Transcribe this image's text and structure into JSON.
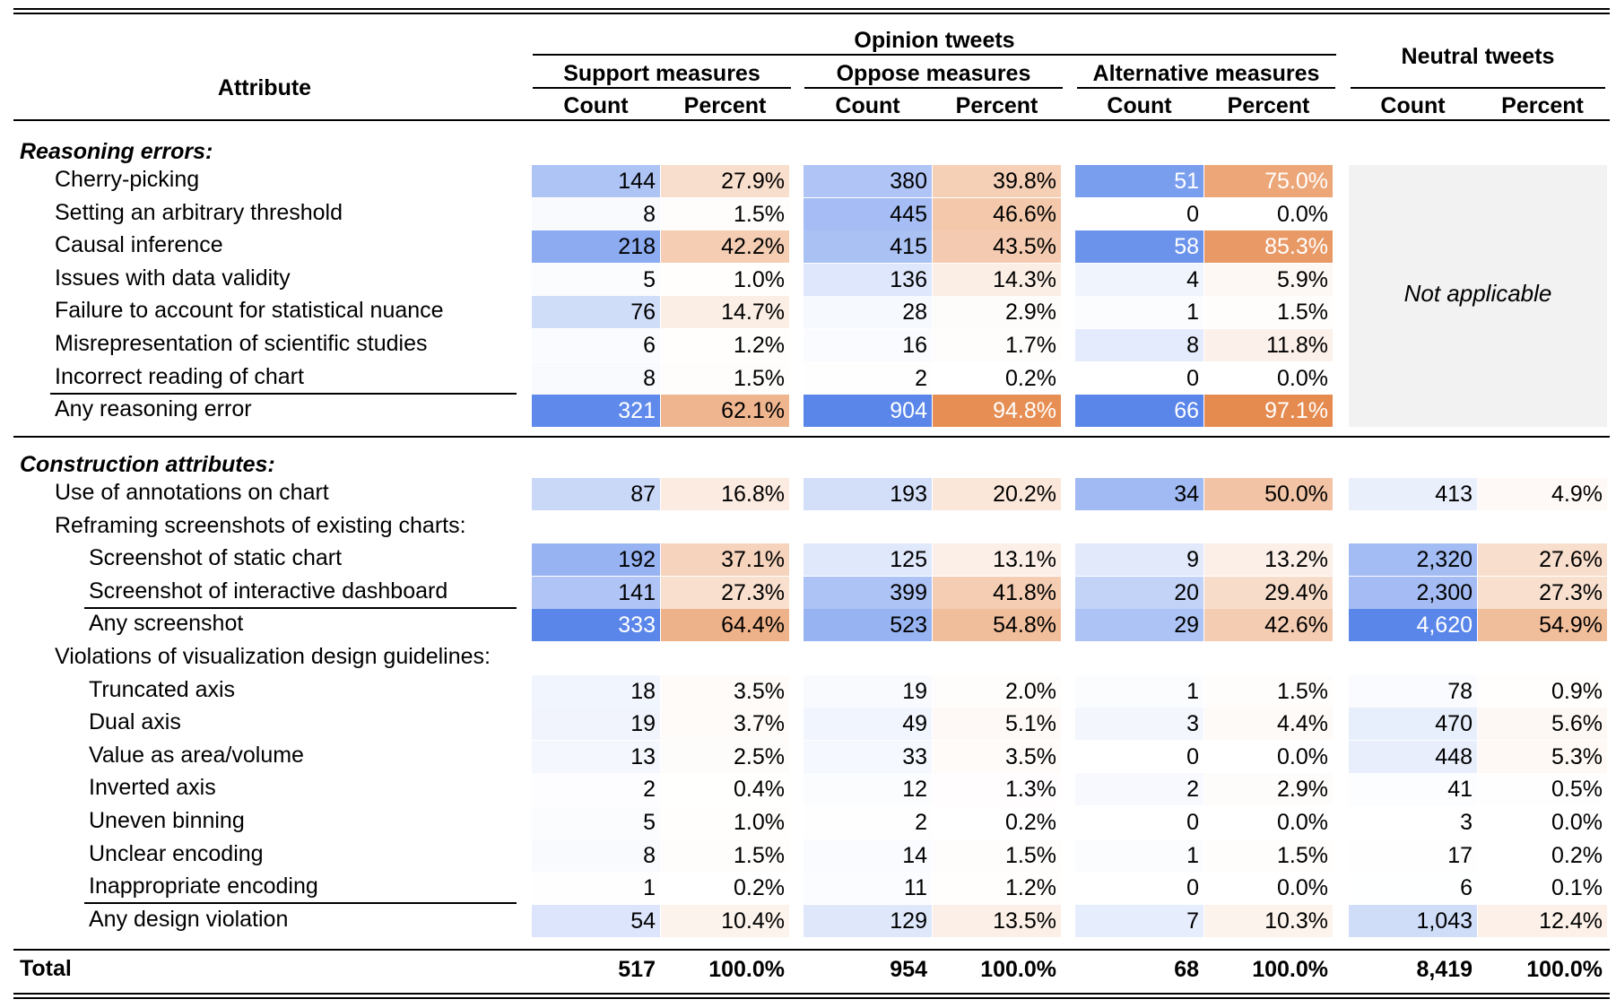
{
  "header": {
    "attribute": "Attribute",
    "opinion": "Opinion tweets",
    "neutral": "Neutral tweets",
    "groups": [
      "Support measures",
      "Oppose measures",
      "Alternative measures"
    ],
    "count": "Count",
    "percent": "Percent"
  },
  "sections": [
    {
      "title": "Reasoning errors:",
      "rows": [
        {
          "label": "Cherry-picking",
          "indent": 1,
          "values": [
            [
              "144",
              "27.9%"
            ],
            [
              "380",
              "39.8%"
            ],
            [
              "51",
              "75.0%"
            ]
          ]
        },
        {
          "label": "Setting an arbitrary threshold",
          "indent": 1,
          "values": [
            [
              "8",
              "1.5%"
            ],
            [
              "445",
              "46.6%"
            ],
            [
              "0",
              "0.0%"
            ]
          ]
        },
        {
          "label": "Causal inference",
          "indent": 1,
          "values": [
            [
              "218",
              "42.2%"
            ],
            [
              "415",
              "43.5%"
            ],
            [
              "58",
              "85.3%"
            ]
          ]
        },
        {
          "label": "Issues with data validity",
          "indent": 1,
          "values": [
            [
              "5",
              "1.0%"
            ],
            [
              "136",
              "14.3%"
            ],
            [
              "4",
              "5.9%"
            ]
          ]
        },
        {
          "label": "Failure to account for statistical nuance",
          "indent": 1,
          "values": [
            [
              "76",
              "14.7%"
            ],
            [
              "28",
              "2.9%"
            ],
            [
              "1",
              "1.5%"
            ]
          ]
        },
        {
          "label": "Misrepresentation of scientific studies",
          "indent": 1,
          "values": [
            [
              "6",
              "1.2%"
            ],
            [
              "16",
              "1.7%"
            ],
            [
              "8",
              "11.8%"
            ]
          ]
        },
        {
          "label": "Incorrect reading of chart",
          "indent": 1,
          "underline": true,
          "values": [
            [
              "8",
              "1.5%"
            ],
            [
              "2",
              "0.2%"
            ],
            [
              "0",
              "0.0%"
            ]
          ]
        },
        {
          "label": "Any reasoning error",
          "indent": 1,
          "values": [
            [
              "321",
              "62.1%"
            ],
            [
              "904",
              "94.8%"
            ],
            [
              "66",
              "97.1%"
            ]
          ]
        }
      ],
      "neutral_note": "Not applicable"
    },
    {
      "title": "Construction attributes:",
      "rows": [
        {
          "label": "Use of annotations on chart",
          "indent": 1,
          "values": [
            [
              "87",
              "16.8%"
            ],
            [
              "193",
              "20.2%"
            ],
            [
              "34",
              "50.0%"
            ],
            [
              "413",
              "4.9%"
            ]
          ]
        },
        {
          "label": "Reframing screenshots of existing charts:",
          "indent": 1,
          "subheader": true
        },
        {
          "label": "Screenshot of static chart",
          "indent": 2,
          "values": [
            [
              "192",
              "37.1%"
            ],
            [
              "125",
              "13.1%"
            ],
            [
              "9",
              "13.2%"
            ],
            [
              "2,320",
              "27.6%"
            ]
          ]
        },
        {
          "label": "Screenshot of interactive dashboard",
          "indent": 2,
          "underline": true,
          "values": [
            [
              "141",
              "27.3%"
            ],
            [
              "399",
              "41.8%"
            ],
            [
              "20",
              "29.4%"
            ],
            [
              "2,300",
              "27.3%"
            ]
          ]
        },
        {
          "label": "Any screenshot",
          "indent": 2,
          "values": [
            [
              "333",
              "64.4%"
            ],
            [
              "523",
              "54.8%"
            ],
            [
              "29",
              "42.6%"
            ],
            [
              "4,620",
              "54.9%"
            ]
          ]
        },
        {
          "label": "Violations of visualization design guidelines:",
          "indent": 1,
          "subheader": true
        },
        {
          "label": "Truncated axis",
          "indent": 2,
          "values": [
            [
              "18",
              "3.5%"
            ],
            [
              "19",
              "2.0%"
            ],
            [
              "1",
              "1.5%"
            ],
            [
              "78",
              "0.9%"
            ]
          ]
        },
        {
          "label": "Dual axis",
          "indent": 2,
          "values": [
            [
              "19",
              "3.7%"
            ],
            [
              "49",
              "5.1%"
            ],
            [
              "3",
              "4.4%"
            ],
            [
              "470",
              "5.6%"
            ]
          ]
        },
        {
          "label": "Value as area/volume",
          "indent": 2,
          "values": [
            [
              "13",
              "2.5%"
            ],
            [
              "33",
              "3.5%"
            ],
            [
              "0",
              "0.0%"
            ],
            [
              "448",
              "5.3%"
            ]
          ]
        },
        {
          "label": "Inverted axis",
          "indent": 2,
          "values": [
            [
              "2",
              "0.4%"
            ],
            [
              "12",
              "1.3%"
            ],
            [
              "2",
              "2.9%"
            ],
            [
              "41",
              "0.5%"
            ]
          ]
        },
        {
          "label": "Uneven binning",
          "indent": 2,
          "values": [
            [
              "5",
              "1.0%"
            ],
            [
              "2",
              "0.2%"
            ],
            [
              "0",
              "0.0%"
            ],
            [
              "3",
              "0.0%"
            ]
          ]
        },
        {
          "label": "Unclear encoding",
          "indent": 2,
          "values": [
            [
              "8",
              "1.5%"
            ],
            [
              "14",
              "1.5%"
            ],
            [
              "1",
              "1.5%"
            ],
            [
              "17",
              "0.2%"
            ]
          ]
        },
        {
          "label": "Inappropriate encoding",
          "indent": 2,
          "underline": true,
          "values": [
            [
              "1",
              "0.2%"
            ],
            [
              "11",
              "1.2%"
            ],
            [
              "0",
              "0.0%"
            ],
            [
              "6",
              "0.1%"
            ]
          ]
        },
        {
          "label": "Any design violation",
          "indent": 2,
          "values": [
            [
              "54",
              "10.4%"
            ],
            [
              "129",
              "13.5%"
            ],
            [
              "7",
              "10.3%"
            ],
            [
              "1,043",
              "12.4%"
            ]
          ]
        }
      ]
    }
  ],
  "total": {
    "label": "Total",
    "values": [
      [
        "517",
        "100.0%"
      ],
      [
        "954",
        "100.0%"
      ],
      [
        "68",
        "100.0%"
      ],
      [
        "8,419",
        "100.0%"
      ]
    ]
  },
  "colors": {
    "count_scale": "#5a86ea",
    "percent_scale": "#e5884a",
    "na_fill": "#f2f2f2"
  }
}
